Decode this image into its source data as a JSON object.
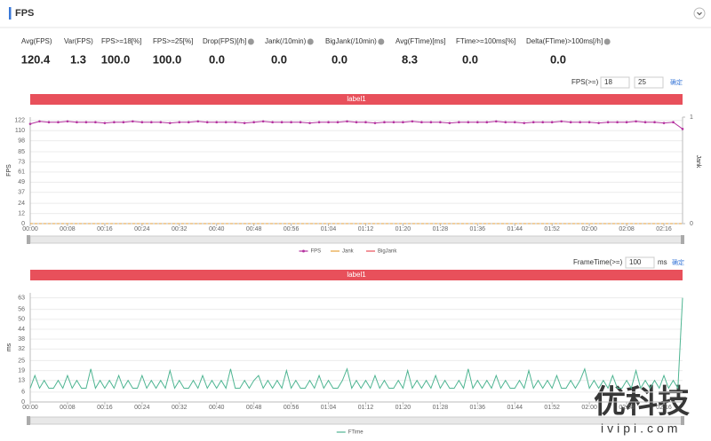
{
  "header": {
    "title": "FPS"
  },
  "stats": [
    {
      "label": "Avg(FPS)",
      "value": "120.4"
    },
    {
      "label": "Var(FPS)",
      "value": "1.3"
    },
    {
      "label": "FPS>=18[%]",
      "value": "100.0"
    },
    {
      "label": "FPS>=25[%]",
      "value": "100.0"
    },
    {
      "label": "Drop(FPS)[/h]",
      "value": "0.0"
    },
    {
      "label": "Jank(/10min)",
      "value": "0.0"
    },
    {
      "label": "BigJank(/10min)",
      "value": "0.0"
    },
    {
      "label": "Avg(FTime)[ms]",
      "value": "8.3"
    },
    {
      "label": "FTime>=100ms[%]",
      "value": "0.0"
    },
    {
      "label": "Delta(FTime)>100ms[/h]",
      "value": "0.0"
    }
  ],
  "fps_controls": {
    "label": "FPS(>=)",
    "values": [
      18,
      25
    ],
    "button": "确定"
  },
  "frametime_controls": {
    "label": "FrameTime(>=)",
    "value": 100,
    "unit": "ms",
    "button": "确定"
  },
  "watermark": {
    "title": "优科技",
    "url": "ivipi.com"
  },
  "chart_data": [
    {
      "type": "line",
      "title": "label1",
      "ylabel": "FPS",
      "y2label": "Jank",
      "grid": true,
      "xlim": [
        0,
        140
      ],
      "ylim": [
        0,
        126
      ],
      "y2lim": [
        0,
        1
      ],
      "yticks": [
        0,
        12,
        24,
        37,
        49,
        61,
        73,
        85,
        98,
        110,
        122
      ],
      "y2ticks": [
        0,
        1
      ],
      "xticks": [
        {
          "value": 0,
          "label": "00:00"
        },
        {
          "value": 8,
          "label": "00:08"
        },
        {
          "value": 16,
          "label": "00:16"
        },
        {
          "value": 24,
          "label": "00:24"
        },
        {
          "value": 32,
          "label": "00:32"
        },
        {
          "value": 40,
          "label": "00:40"
        },
        {
          "value": 48,
          "label": "00:48"
        },
        {
          "value": 56,
          "label": "00:56"
        },
        {
          "value": 64,
          "label": "01:04"
        },
        {
          "value": 72,
          "label": "01:12"
        },
        {
          "value": 80,
          "label": "01:20"
        },
        {
          "value": 88,
          "label": "01:28"
        },
        {
          "value": 96,
          "label": "01:36"
        },
        {
          "value": 104,
          "label": "01:44"
        },
        {
          "value": 112,
          "label": "01:52"
        },
        {
          "value": 120,
          "label": "02:00"
        },
        {
          "value": 128,
          "label": "02:08"
        },
        {
          "value": 136,
          "label": "02:16"
        }
      ],
      "x": [
        0,
        2,
        4,
        6,
        8,
        10,
        12,
        14,
        16,
        18,
        20,
        22,
        24,
        26,
        28,
        30,
        32,
        34,
        36,
        38,
        40,
        42,
        44,
        46,
        48,
        50,
        52,
        54,
        56,
        58,
        60,
        62,
        64,
        66,
        68,
        70,
        72,
        74,
        76,
        78,
        80,
        82,
        84,
        86,
        88,
        90,
        92,
        94,
        96,
        98,
        100,
        102,
        104,
        106,
        108,
        110,
        112,
        114,
        116,
        118,
        120,
        122,
        124,
        126,
        128,
        130,
        132,
        134,
        136,
        138,
        140
      ],
      "series": [
        {
          "name": "FPS",
          "color": "#b4329f",
          "markers": true,
          "values": [
            118,
            121,
            120,
            120,
            121,
            120,
            120,
            120,
            119,
            120,
            120,
            121,
            120,
            120,
            120,
            119,
            120,
            120,
            121,
            120,
            120,
            120,
            120,
            119,
            120,
            121,
            120,
            120,
            120,
            120,
            119,
            120,
            120,
            120,
            121,
            120,
            120,
            119,
            120,
            120,
            120,
            121,
            120,
            120,
            120,
            119,
            120,
            120,
            120,
            120,
            121,
            120,
            120,
            119,
            120,
            120,
            120,
            121,
            120,
            120,
            120,
            119,
            120,
            120,
            120,
            121,
            120,
            120,
            119,
            120,
            112
          ]
        },
        {
          "name": "Jank",
          "color": "#e6a23c",
          "axis": "y2",
          "dashed": true,
          "values": [
            0,
            0,
            0,
            0,
            0,
            0,
            0,
            0,
            0,
            0,
            0,
            0,
            0,
            0,
            0,
            0,
            0,
            0,
            0,
            0,
            0,
            0,
            0,
            0,
            0,
            0,
            0,
            0,
            0,
            0,
            0,
            0,
            0,
            0,
            0,
            0,
            0,
            0,
            0,
            0,
            0,
            0,
            0,
            0,
            0,
            0,
            0,
            0,
            0,
            0,
            0,
            0,
            0,
            0,
            0,
            0,
            0,
            0,
            0,
            0,
            0,
            0,
            0,
            0,
            0,
            0,
            0,
            0,
            0,
            0,
            0
          ]
        },
        {
          "name": "BigJank",
          "color": "#e8505b",
          "axis": "y2",
          "values": [
            null,
            null,
            null,
            null,
            null,
            null,
            null,
            null,
            null,
            null,
            null,
            null,
            null,
            null,
            null,
            null,
            null,
            null,
            null,
            null,
            null,
            null,
            null,
            null,
            null,
            null,
            null,
            null,
            null,
            null,
            null,
            null,
            null,
            null,
            null,
            null,
            null,
            null,
            null,
            null,
            null,
            null,
            null,
            null,
            null,
            null,
            null,
            null,
            null,
            null,
            null,
            null,
            null,
            null,
            null,
            null,
            null,
            null,
            null,
            null,
            null,
            null,
            null,
            null,
            null,
            null,
            null,
            null,
            null,
            null,
            null
          ]
        }
      ]
    },
    {
      "type": "line",
      "title": "label1",
      "ylabel": "ms",
      "grid": true,
      "xlim": [
        0,
        140
      ],
      "ylim": [
        0,
        66
      ],
      "yticks": [
        0,
        6,
        13,
        19,
        25,
        32,
        38,
        44,
        50,
        56,
        63
      ],
      "xticks": [
        {
          "value": 0,
          "label": "00:00"
        },
        {
          "value": 8,
          "label": "00:08"
        },
        {
          "value": 16,
          "label": "00:16"
        },
        {
          "value": 24,
          "label": "00:24"
        },
        {
          "value": 32,
          "label": "00:32"
        },
        {
          "value": 40,
          "label": "00:40"
        },
        {
          "value": 48,
          "label": "00:48"
        },
        {
          "value": 56,
          "label": "00:56"
        },
        {
          "value": 64,
          "label": "01:04"
        },
        {
          "value": 72,
          "label": "01:12"
        },
        {
          "value": 80,
          "label": "01:20"
        },
        {
          "value": 88,
          "label": "01:28"
        },
        {
          "value": 96,
          "label": "01:36"
        },
        {
          "value": 104,
          "label": "01:44"
        },
        {
          "value": 112,
          "label": "01:52"
        },
        {
          "value": 120,
          "label": "02:00"
        },
        {
          "value": 128,
          "label": "02:08"
        },
        {
          "value": 136,
          "label": "02:16"
        }
      ],
      "x": [
        0,
        1,
        2,
        3,
        4,
        5,
        6,
        7,
        8,
        9,
        10,
        11,
        12,
        13,
        14,
        15,
        16,
        17,
        18,
        19,
        20,
        21,
        22,
        23,
        24,
        25,
        26,
        27,
        28,
        29,
        30,
        31,
        32,
        33,
        34,
        35,
        36,
        37,
        38,
        39,
        40,
        41,
        42,
        43,
        44,
        45,
        46,
        47,
        48,
        49,
        50,
        51,
        52,
        53,
        54,
        55,
        56,
        57,
        58,
        59,
        60,
        61,
        62,
        63,
        64,
        65,
        66,
        67,
        68,
        69,
        70,
        71,
        72,
        73,
        74,
        75,
        76,
        77,
        78,
        79,
        80,
        81,
        82,
        83,
        84,
        85,
        86,
        87,
        88,
        89,
        90,
        91,
        92,
        93,
        94,
        95,
        96,
        97,
        98,
        99,
        100,
        101,
        102,
        103,
        104,
        105,
        106,
        107,
        108,
        109,
        110,
        111,
        112,
        113,
        114,
        115,
        116,
        117,
        118,
        119,
        120,
        121,
        122,
        123,
        124,
        125,
        126,
        127,
        128,
        129,
        130,
        131,
        132,
        133,
        134,
        135,
        136,
        137,
        138,
        139,
        140
      ],
      "series": [
        {
          "name": "FTime",
          "color": "#4fb592",
          "values": [
            8.3,
            16,
            8.3,
            13,
            8.3,
            8.3,
            13,
            8.3,
            16,
            8.3,
            13,
            8.3,
            8.3,
            20,
            8.3,
            13,
            8.3,
            13,
            8.3,
            16,
            8.3,
            13,
            8.3,
            8.3,
            16,
            8.3,
            13,
            8.3,
            13,
            8.3,
            19,
            8.3,
            13,
            8.3,
            8.3,
            13,
            8.3,
            16,
            8.3,
            13,
            8.3,
            13,
            8.3,
            20,
            8.3,
            8.3,
            13,
            8.3,
            13,
            16,
            8.3,
            13,
            8.3,
            13,
            8.3,
            19,
            8.3,
            13,
            8.3,
            8.3,
            13,
            8.3,
            16,
            8.3,
            13,
            8.3,
            8.3,
            13,
            20,
            8.3,
            13,
            8.3,
            13,
            8.3,
            16,
            8.3,
            13,
            8.3,
            8.3,
            13,
            8.3,
            19,
            8.3,
            13,
            8.3,
            13,
            8.3,
            16,
            8.3,
            13,
            8.3,
            8.3,
            13,
            8.3,
            20,
            8.3,
            13,
            8.3,
            13,
            8.3,
            16,
            8.3,
            13,
            8.3,
            8.3,
            13,
            8.3,
            19,
            8.3,
            13,
            8.3,
            13,
            8.3,
            16,
            8.3,
            8.3,
            13,
            8.3,
            13,
            20,
            8.3,
            13,
            8.3,
            13,
            8.3,
            16,
            8.3,
            8.3,
            13,
            8.3,
            19,
            8.3,
            13,
            8.3,
            13,
            8.3,
            16,
            8.3,
            13,
            8.3,
            63
          ]
        }
      ]
    }
  ]
}
